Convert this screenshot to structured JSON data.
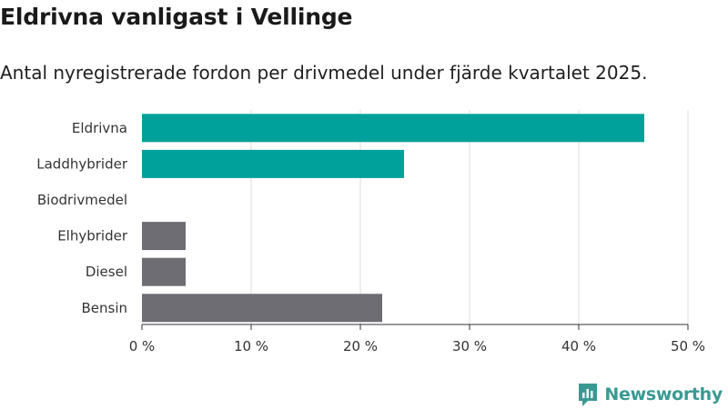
{
  "title": "Eldrivna vanligast i Vellinge",
  "subtitle": "Antal nyregistrerade fordon per drivmedel under fjärde kvartalet 2025.",
  "brand": "Newsworthy",
  "colors": {
    "highlight": "#00a19a",
    "neutral": "#6e6d74",
    "grid": "#dddddd",
    "axis": "#333333"
  },
  "chart_data": {
    "type": "bar",
    "orientation": "horizontal",
    "categories": [
      "Eldrivna",
      "Laddhybrider",
      "Biodrivmedel",
      "Elhybrider",
      "Diesel",
      "Bensin"
    ],
    "values": [
      46,
      24,
      0,
      4,
      4,
      22
    ],
    "value_unit": "%",
    "bar_colors": [
      "highlight",
      "highlight",
      "highlight",
      "neutral",
      "neutral",
      "neutral"
    ],
    "xlim": [
      0,
      50
    ],
    "xticks": [
      0,
      10,
      20,
      30,
      40,
      50
    ],
    "xtick_labels": [
      "0 %",
      "10 %",
      "20 %",
      "30 %",
      "40 %",
      "50 %"
    ],
    "grid": true
  }
}
